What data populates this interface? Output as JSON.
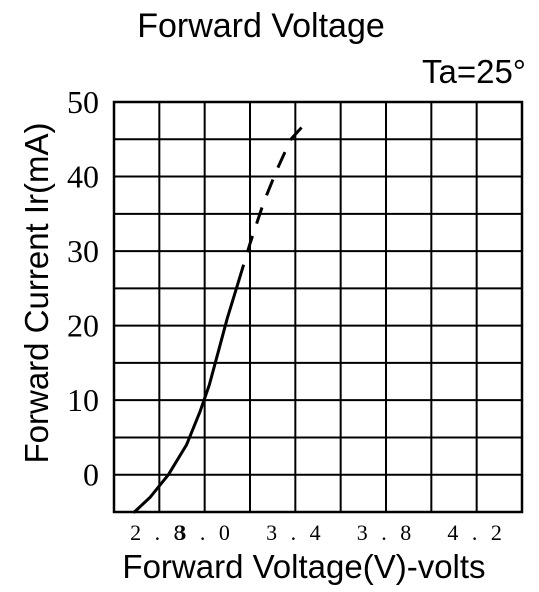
{
  "chart_data": {
    "type": "line",
    "title": "Forward Voltage",
    "condition": "Ta=25°",
    "xlabel": "Forward Voltage(V)-volts",
    "ylabel": "Forward Current  Ir(mA)",
    "xlim": [
      2.6,
      4.4
    ],
    "ylim": [
      -5,
      50
    ],
    "x_tick_values": [
      2.8,
      3.0,
      3.2,
      3.4,
      3.8,
      4.2
    ],
    "x_tick_labels": [
      "2.8",
      "3.0",
      "",
      "3.4",
      "3.8",
      "4.2"
    ],
    "y_ticks": [
      0,
      10,
      20,
      30,
      40,
      50
    ],
    "grid": true,
    "grid_x_lines": [
      2.8,
      3.0,
      3.2,
      3.4,
      3.6,
      3.8,
      4.0,
      4.2,
      4.4
    ],
    "grid_y_lines": [
      -5,
      0,
      5,
      10,
      15,
      20,
      25,
      30,
      35,
      40,
      45,
      50
    ],
    "series": [
      {
        "style": "solid",
        "x": [
          2.69,
          2.76,
          2.84,
          2.92,
          2.98,
          3.02,
          3.06,
          3.1,
          3.15
        ],
        "y": [
          -5,
          -3,
          0,
          4,
          8.5,
          12,
          16.5,
          21,
          26
        ]
      },
      {
        "style": "dashed",
        "x": [
          3.15,
          3.2,
          3.26,
          3.32,
          3.38,
          3.44
        ],
        "y": [
          26,
          31,
          36.5,
          41,
          45,
          47
        ]
      }
    ]
  }
}
